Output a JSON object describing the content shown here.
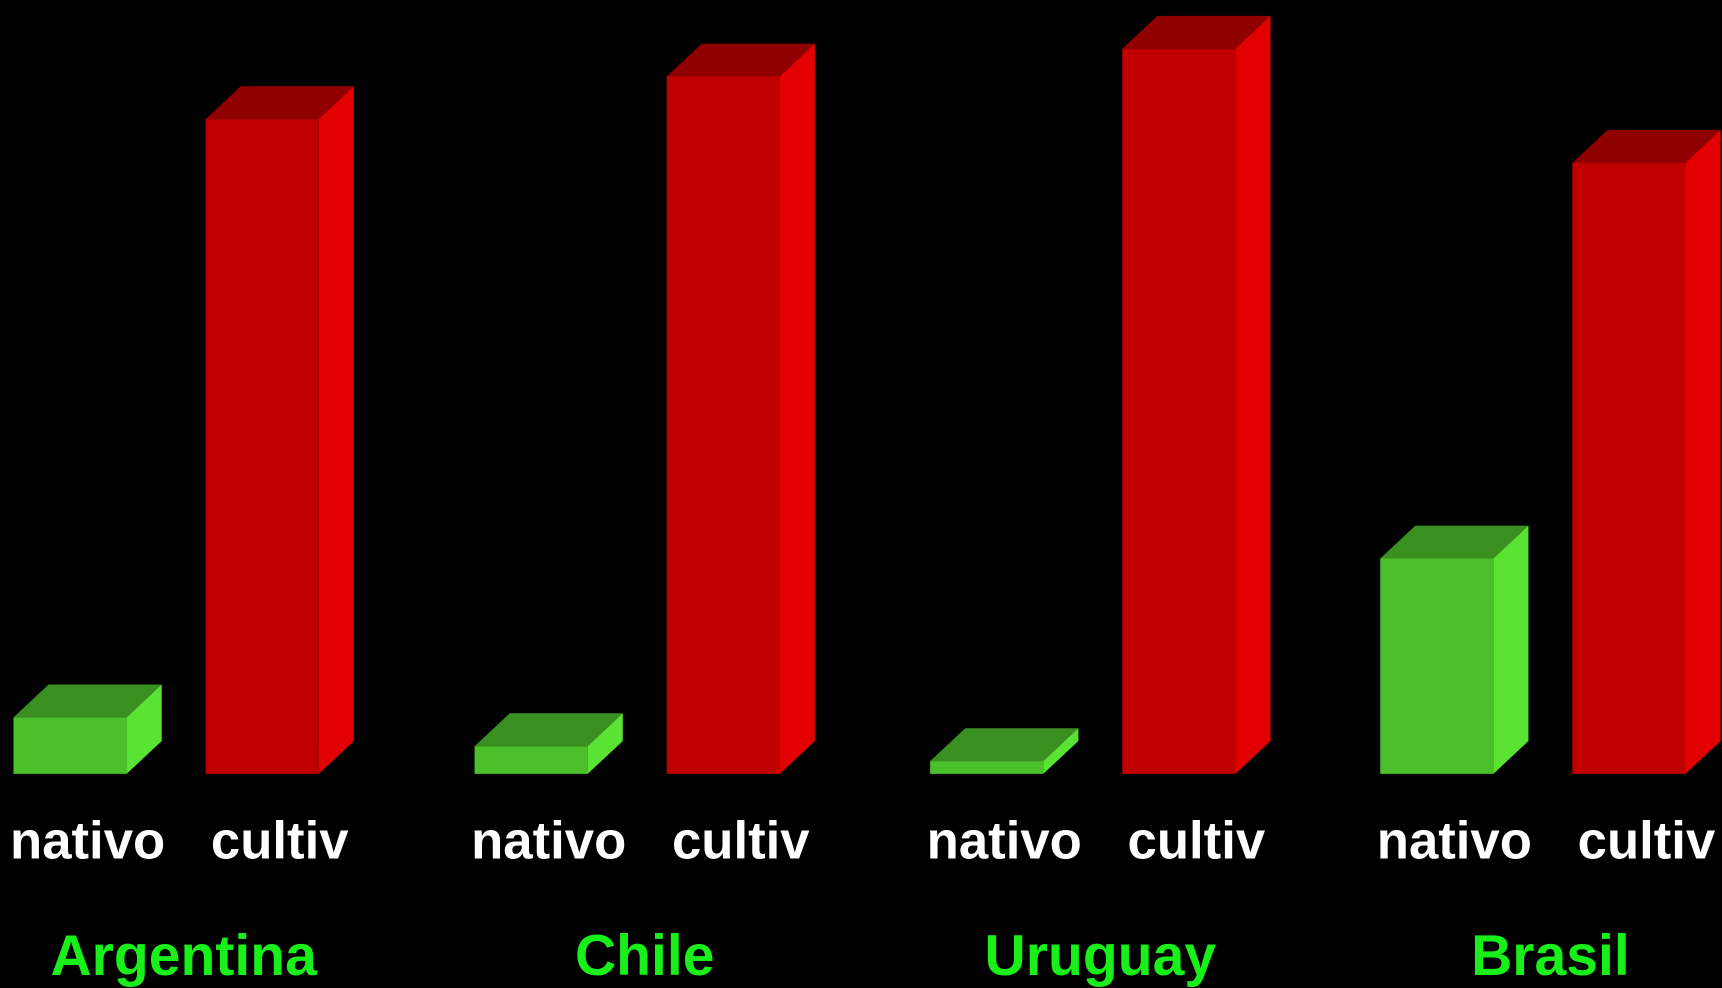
{
  "chart_data": {
    "type": "bar3d",
    "categories": [
      "Argentina",
      "Chile",
      "Uruguay",
      "Brasil"
    ],
    "series": [
      {
        "name": "nativo",
        "color": "#4cc02a",
        "values": [
          53,
          26,
          12,
          202
        ]
      },
      {
        "name": "cultiv",
        "color": "#c00000",
        "values": [
          614,
          654,
          680,
          573
        ]
      }
    ],
    "ylim": [
      0,
      700
    ],
    "category_color": "#19f019",
    "label_color": "#ffffff"
  }
}
